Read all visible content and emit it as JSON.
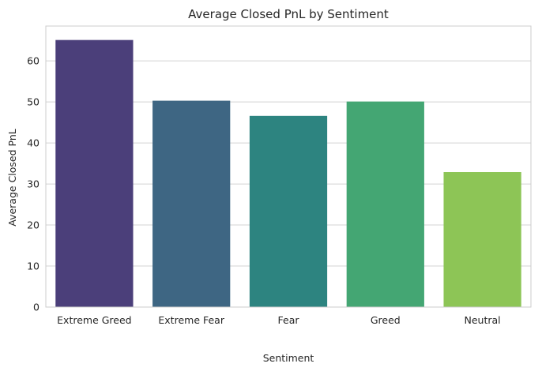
{
  "chart_data": {
    "type": "bar",
    "title": "Average Closed PnL by Sentiment",
    "xlabel": "Sentiment",
    "ylabel": "Average Closed PnL",
    "categories": [
      "Extreme Greed",
      "Extreme Fear",
      "Fear",
      "Greed",
      "Neutral"
    ],
    "values": [
      65.1,
      50.3,
      46.6,
      50.1,
      32.9
    ],
    "ylim": [
      0,
      68.5
    ],
    "yticks": [
      "0",
      "10",
      "20",
      "30",
      "40",
      "50",
      "60"
    ],
    "grid": true,
    "colors": [
      "#4b3f7a",
      "#3e6683",
      "#2d8480",
      "#44a673",
      "#8dc556"
    ]
  }
}
